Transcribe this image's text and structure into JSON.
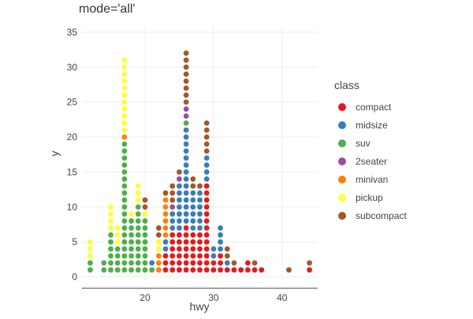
{
  "chart_data": {
    "type": "scatter",
    "title": "mode='all'",
    "xlabel": "hwy",
    "ylabel": "y",
    "xlim": [
      10.8,
      45.2
    ],
    "ylim": [
      -0.5,
      36
    ],
    "xticks": [
      20,
      30,
      40
    ],
    "yticks": [
      0,
      5,
      10,
      15,
      20,
      25,
      30,
      35
    ],
    "grid": true,
    "legend": {
      "title": "class",
      "placement": "right",
      "entries": [
        {
          "name": "compact",
          "color": "#e41a1c"
        },
        {
          "name": "midsize",
          "color": "#377eb8"
        },
        {
          "name": "suv",
          "color": "#4daf4a"
        },
        {
          "name": "2seater",
          "color": "#984ea3"
        },
        {
          "name": "minivan",
          "color": "#ff7f00"
        },
        {
          "name": "pickup",
          "color": "#ffff33"
        },
        {
          "name": "subcompact",
          "color": "#a65628"
        }
      ]
    },
    "stacks": [
      {
        "x": 12,
        "classes": [
          "suv",
          "suv",
          "pickup",
          "pickup",
          "pickup"
        ]
      },
      {
        "x": 14,
        "classes": [
          "suv",
          "suv"
        ]
      },
      {
        "x": 15,
        "classes": [
          "suv",
          "suv",
          "suv",
          "suv",
          "suv",
          "suv",
          "pickup",
          "pickup",
          "pickup",
          "pickup"
        ]
      },
      {
        "x": 16,
        "classes": [
          "suv",
          "suv",
          "suv",
          "suv",
          "pickup",
          "pickup",
          "pickup"
        ]
      },
      {
        "x": 17,
        "classes": [
          "suv",
          "suv",
          "suv",
          "suv",
          "suv",
          "suv",
          "suv",
          "suv",
          "suv",
          "suv",
          "suv",
          "suv",
          "suv",
          "suv",
          "suv",
          "suv",
          "suv",
          "suv",
          "suv",
          "minivan",
          "pickup",
          "pickup",
          "pickup",
          "pickup",
          "pickup",
          "pickup",
          "pickup",
          "pickup",
          "pickup",
          "pickup",
          "pickup"
        ]
      },
      {
        "x": 18,
        "classes": [
          "suv",
          "suv",
          "suv",
          "suv",
          "suv",
          "suv",
          "suv",
          "suv",
          "pickup"
        ]
      },
      {
        "x": 19,
        "classes": [
          "suv",
          "suv",
          "suv",
          "suv",
          "suv",
          "suv",
          "suv",
          "suv",
          "suv",
          "suv",
          "pickup",
          "pickup",
          "pickup"
        ]
      },
      {
        "x": 20,
        "classes": [
          "suv",
          "suv",
          "suv",
          "suv",
          "suv",
          "suv",
          "suv",
          "suv",
          "pickup",
          "subcompact",
          "subcompact"
        ]
      },
      {
        "x": 21,
        "classes": [
          "suv",
          "midsize"
        ]
      },
      {
        "x": 22,
        "classes": [
          "minivan",
          "minivan",
          "minivan",
          "pickup",
          "pickup",
          "subcompact",
          "subcompact"
        ]
      },
      {
        "x": 23,
        "classes": [
          "compact",
          "compact",
          "compact",
          "midsize",
          "midsize",
          "minivan",
          "minivan",
          "minivan",
          "minivan",
          "minivan",
          "minivan",
          "subcompact"
        ]
      },
      {
        "x": 24,
        "classes": [
          "compact",
          "compact",
          "compact",
          "compact",
          "compact",
          "compact",
          "midsize",
          "midsize",
          "midsize",
          "2seater",
          "subcompact",
          "subcompact",
          "subcompact"
        ]
      },
      {
        "x": 25,
        "classes": [
          "compact",
          "compact",
          "compact",
          "compact",
          "compact",
          "compact",
          "midsize",
          "midsize",
          "midsize",
          "midsize",
          "midsize",
          "midsize",
          "midsize",
          "2seater",
          "subcompact"
        ]
      },
      {
        "x": 26,
        "classes": [
          "compact",
          "compact",
          "compact",
          "compact",
          "compact",
          "compact",
          "compact",
          "midsize",
          "midsize",
          "midsize",
          "midsize",
          "midsize",
          "midsize",
          "midsize",
          "midsize",
          "midsize",
          "midsize",
          "midsize",
          "midsize",
          "midsize",
          "midsize",
          "suv",
          "2seater",
          "2seater",
          "subcompact",
          "subcompact",
          "subcompact",
          "subcompact",
          "subcompact",
          "subcompact",
          "subcompact",
          "subcompact"
        ]
      },
      {
        "x": 27,
        "classes": [
          "compact",
          "compact",
          "compact",
          "compact",
          "compact",
          "compact",
          "midsize",
          "midsize",
          "midsize",
          "midsize",
          "midsize",
          "midsize",
          "subcompact",
          "subcompact"
        ]
      },
      {
        "x": 28,
        "classes": [
          "compact",
          "compact",
          "compact",
          "compact",
          "compact",
          "compact",
          "midsize",
          "midsize",
          "midsize",
          "midsize",
          "midsize",
          "midsize",
          "subcompact"
        ]
      },
      {
        "x": 29,
        "classes": [
          "compact",
          "compact",
          "compact",
          "compact",
          "compact",
          "compact",
          "compact",
          "compact",
          "compact",
          "compact",
          "compact",
          "compact",
          "compact",
          "midsize",
          "midsize",
          "midsize",
          "midsize",
          "subcompact",
          "subcompact",
          "subcompact",
          "subcompact",
          "subcompact"
        ]
      },
      {
        "x": 30,
        "classes": [
          "compact",
          "compact",
          "midsize",
          "midsize"
        ]
      },
      {
        "x": 31,
        "classes": [
          "compact",
          "compact",
          "compact",
          "midsize",
          "midsize",
          "midsize",
          "midsize"
        ]
      },
      {
        "x": 32,
        "classes": [
          "compact",
          "midsize",
          "subcompact",
          "subcompact"
        ]
      },
      {
        "x": 33,
        "classes": [
          "compact",
          "subcompact"
        ]
      },
      {
        "x": 34,
        "classes": [
          "compact"
        ]
      },
      {
        "x": 35,
        "classes": [
          "compact",
          "compact"
        ]
      },
      {
        "x": 36,
        "classes": [
          "compact",
          "subcompact"
        ]
      },
      {
        "x": 37,
        "classes": [
          "compact"
        ]
      },
      {
        "x": 41,
        "classes": [
          "subcompact"
        ]
      },
      {
        "x": 44,
        "classes": [
          "compact",
          "subcompact"
        ]
      }
    ]
  }
}
